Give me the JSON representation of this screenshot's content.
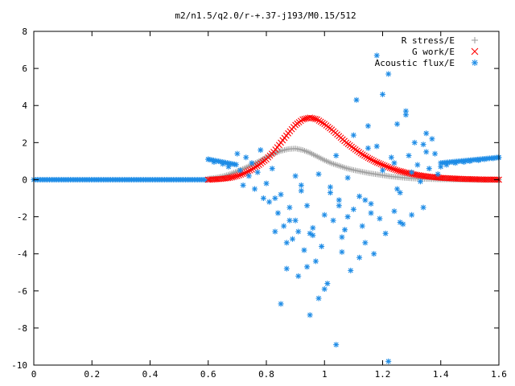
{
  "chart_data": {
    "type": "scatter",
    "title": "m2/n1.5/q2.0/r-+.37-j193/M0.15/512",
    "xlim": [
      0,
      1.6
    ],
    "ylim": [
      -10,
      8
    ],
    "xticks": [
      "0",
      "0.2",
      "0.4",
      "0.6",
      "0.8",
      "1",
      "1.2",
      "1.4",
      "1.6"
    ],
    "yticks": [
      "8",
      "6",
      "4",
      "2",
      "0",
      "-2",
      "-4",
      "-6",
      "-8",
      "-10"
    ],
    "grid": false,
    "legend_position": "top-right",
    "series": [
      {
        "name": "R stress/E",
        "color": "#a0a0a0",
        "marker": "plus",
        "x": [
          0.6,
          0.625,
          0.65,
          0.675,
          0.7,
          0.725,
          0.75,
          0.775,
          0.8,
          0.825,
          0.85,
          0.875,
          0.9,
          0.925,
          0.95,
          0.975,
          1.0,
          1.025,
          1.05,
          1.075,
          1.1,
          1.125,
          1.15,
          1.175,
          1.2,
          1.225,
          1.25,
          1.275,
          1.3,
          1.325,
          1.35,
          1.375,
          1.4,
          1.425,
          1.45,
          1.475,
          1.5,
          1.525,
          1.55,
          1.575,
          1.6
        ],
        "y": [
          0.05,
          0.1,
          0.18,
          0.3,
          0.45,
          0.62,
          0.8,
          1.0,
          1.2,
          1.4,
          1.55,
          1.65,
          1.68,
          1.6,
          1.45,
          1.25,
          1.05,
          0.88,
          0.75,
          0.62,
          0.52,
          0.44,
          0.36,
          0.3,
          0.24,
          0.18,
          0.14,
          0.1,
          0.07,
          0.05,
          0.04,
          0.03,
          0.02,
          0.02,
          0.01,
          0.01,
          0.01,
          0.0,
          0.0,
          0.0,
          0.0
        ]
      },
      {
        "name": "G work/E",
        "color": "#ff0000",
        "marker": "cross",
        "x": [
          0.6,
          0.625,
          0.65,
          0.675,
          0.7,
          0.725,
          0.75,
          0.775,
          0.8,
          0.825,
          0.85,
          0.875,
          0.9,
          0.925,
          0.95,
          0.975,
          1.0,
          1.025,
          1.05,
          1.075,
          1.1,
          1.125,
          1.15,
          1.175,
          1.2,
          1.225,
          1.25,
          1.275,
          1.3,
          1.325,
          1.35,
          1.375,
          1.4,
          1.425,
          1.45,
          1.475,
          1.5,
          1.525,
          1.55,
          1.575,
          1.6
        ],
        "y": [
          0.0,
          0.02,
          0.05,
          0.1,
          0.2,
          0.35,
          0.55,
          0.8,
          1.1,
          1.5,
          2.0,
          2.5,
          2.95,
          3.25,
          3.35,
          3.25,
          3.0,
          2.7,
          2.35,
          2.0,
          1.7,
          1.42,
          1.18,
          0.97,
          0.8,
          0.64,
          0.5,
          0.4,
          0.31,
          0.24,
          0.18,
          0.14,
          0.1,
          0.08,
          0.06,
          0.04,
          0.03,
          0.02,
          0.01,
          0.01,
          0.0
        ]
      },
      {
        "name": "Acoustic flux/E",
        "color": "#1e8ce6",
        "marker": "star",
        "x": [
          0.0,
          0.025,
          0.05,
          0.075,
          0.1,
          0.125,
          0.15,
          0.175,
          0.2,
          0.225,
          0.25,
          0.275,
          0.3,
          0.325,
          0.35,
          0.375,
          0.4,
          0.425,
          0.45,
          0.475,
          0.5,
          0.525,
          0.55,
          0.575,
          0.6,
          0.62,
          0.65,
          0.67,
          0.7,
          0.71,
          0.72,
          0.73,
          0.74,
          0.75,
          0.76,
          0.77,
          0.78,
          0.79,
          0.8,
          0.81,
          0.82,
          0.83,
          0.84,
          0.85,
          0.86,
          0.87,
          0.88,
          0.89,
          0.9,
          0.91,
          0.92,
          0.93,
          0.94,
          0.95,
          0.96,
          0.97,
          0.98,
          0.99,
          1.0,
          1.01,
          1.02,
          1.03,
          1.04,
          1.05,
          1.06,
          1.07,
          1.08,
          1.09,
          1.1,
          1.11,
          1.12,
          1.13,
          1.14,
          1.15,
          1.16,
          1.17,
          1.18,
          1.19,
          1.2,
          1.21,
          1.22,
          1.23,
          1.24,
          1.25,
          1.26,
          1.27,
          1.28,
          1.29,
          1.3,
          1.31,
          1.32,
          1.33,
          1.34,
          1.35,
          1.36,
          1.37,
          1.38,
          1.39,
          1.4,
          1.42,
          1.45,
          1.48,
          1.5,
          1.53,
          1.55,
          1.58,
          1.6,
          0.83,
          0.87,
          0.91,
          0.94,
          0.98,
          1.02,
          1.06,
          1.1,
          1.14,
          1.18,
          1.22,
          1.26,
          1.3,
          1.34,
          0.88,
          0.92,
          0.96,
          1.0,
          1.04,
          1.08,
          1.12,
          1.16,
          1.2,
          1.24,
          1.28,
          0.85,
          0.9,
          0.95,
          1.05,
          1.15,
          1.25,
          1.35
        ],
        "y": [
          0.0,
          0.0,
          0.0,
          0.0,
          0.0,
          0.0,
          0.0,
          0.0,
          0.0,
          0.0,
          0.0,
          0.0,
          0.0,
          0.0,
          0.0,
          0.0,
          0.0,
          0.0,
          0.0,
          0.0,
          0.0,
          0.0,
          0.0,
          0.0,
          1.1,
          0.95,
          0.85,
          0.7,
          1.4,
          0.5,
          -0.3,
          1.2,
          0.2,
          0.9,
          -0.5,
          0.4,
          1.6,
          -1.0,
          -0.2,
          -1.2,
          0.6,
          -2.8,
          -1.8,
          -0.8,
          -2.5,
          -4.8,
          -1.5,
          -3.2,
          -2.2,
          -5.2,
          -0.6,
          -3.8,
          -1.4,
          -7.3,
          -2.6,
          -4.4,
          0.3,
          -3.6,
          -1.9,
          -5.6,
          -0.4,
          -2.2,
          -8.9,
          -1.1,
          -3.1,
          -2.7,
          0.1,
          -4.9,
          -1.6,
          4.3,
          -0.9,
          -2.5,
          -3.4,
          2.9,
          -1.3,
          -4.0,
          1.8,
          -2.1,
          0.5,
          -2.9,
          5.7,
          1.2,
          -1.7,
          3.0,
          -0.7,
          -2.4,
          3.7,
          1.3,
          -1.9,
          2.0,
          0.8,
          -0.1,
          1.9,
          1.5,
          0.6,
          2.2,
          1.4,
          0.3,
          0.7,
          0.8,
          0.9,
          0.95,
          1.0,
          1.05,
          1.1,
          1.15,
          1.2,
          -1.0,
          -3.4,
          -2.8,
          -4.7,
          -6.4,
          -0.7,
          -3.9,
          2.4,
          -1.1,
          6.7,
          -9.8,
          -2.3,
          0.4,
          -1.5,
          -2.2,
          -0.3,
          -3.0,
          -5.9,
          1.3,
          -2.0,
          -4.2,
          -1.8,
          4.6,
          0.9,
          3.5,
          -6.7,
          0.2,
          -2.9,
          -1.4,
          1.7,
          -0.5,
          2.5
        ]
      }
    ]
  }
}
